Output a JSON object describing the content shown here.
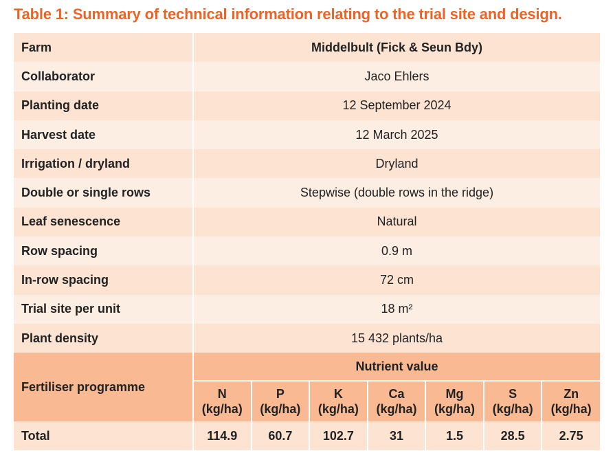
{
  "title": "Table 1: Summary of technical information relating to the trial site and design.",
  "rows": [
    {
      "label": "Farm",
      "value": "Middelbult (Fick & Seun Bdy)"
    },
    {
      "label": "Collaborator",
      "value": "Jaco Ehlers"
    },
    {
      "label": "Planting date",
      "value": "12 September 2024"
    },
    {
      "label": "Harvest date",
      "value": "12 March 2025"
    },
    {
      "label": "Irrigation / dryland",
      "value": "Dryland"
    },
    {
      "label": "Double or single rows",
      "value": "Stepwise (double rows in the ridge)"
    },
    {
      "label": "Leaf senescence",
      "value": "Natural"
    },
    {
      "label": "Row spacing",
      "value": "0.9 m"
    },
    {
      "label": "In-row spacing",
      "value": "72 cm"
    },
    {
      "label": "Trial site per unit",
      "value": "18 m²"
    },
    {
      "label": "Plant density",
      "value": "15 432 plants/ha"
    }
  ],
  "fertiliser": {
    "label": "Fertiliser programme",
    "group_header": "Nutrient value",
    "nutrients": [
      {
        "name": "N",
        "unit": "(kg/ha)"
      },
      {
        "name": "P",
        "unit": "(kg/ha)"
      },
      {
        "name": "K",
        "unit": "(kg/ha)"
      },
      {
        "name": "Ca",
        "unit": "(kg/ha)"
      },
      {
        "name": "Mg",
        "unit": "(kg/ha)"
      },
      {
        "name": "S",
        "unit": "(kg/ha)"
      },
      {
        "name": "Zn",
        "unit": "(kg/ha)"
      }
    ],
    "total_label": "Total",
    "totals": [
      "114.9",
      "60.7",
      "102.7",
      "31",
      "1.5",
      "28.5",
      "2.75"
    ]
  },
  "colors": {
    "title": "#e8652a",
    "row_dark": "#fde3d2",
    "row_light": "#fdeee4",
    "fertiliser_header": "#f9b993"
  }
}
